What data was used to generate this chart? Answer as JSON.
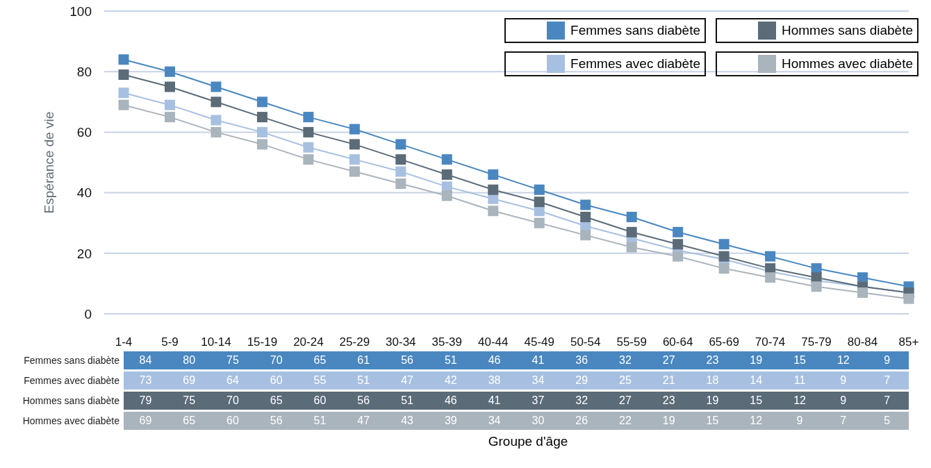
{
  "chart_data": {
    "type": "line",
    "annotations": [
      "Groupe d'âge"
    ],
    "ylabel": "Espérance de vie",
    "categories": [
      "1-4",
      "5-9",
      "10-14",
      "15-19",
      "20-24",
      "25-29",
      "30-34",
      "35-39",
      "40-44",
      "45-49",
      "50-54",
      "55-59",
      "60-64",
      "65-69",
      "70-74",
      "75-79",
      "80-84",
      "85+"
    ],
    "series": [
      {
        "name": "Femmes sans diabète",
        "color": "#4a87c0",
        "values": [
          84,
          80,
          75,
          70,
          65,
          61,
          56,
          51,
          46,
          41,
          36,
          32,
          27,
          23,
          19,
          15,
          12,
          9
        ]
      },
      {
        "name": "Femmes avec diabète",
        "color": "#a7c0e1",
        "values": [
          73,
          69,
          64,
          60,
          55,
          51,
          47,
          42,
          38,
          34,
          29,
          25,
          21,
          18,
          14,
          11,
          9,
          7
        ]
      },
      {
        "name": "Hommes sans diabète",
        "color": "#5b6b78",
        "values": [
          79,
          75,
          70,
          65,
          60,
          56,
          51,
          46,
          41,
          37,
          32,
          27,
          23,
          19,
          15,
          12,
          9,
          7
        ]
      },
      {
        "name": "Hommes avec diabète",
        "color": "#a9b4bc",
        "values": [
          69,
          65,
          60,
          56,
          51,
          47,
          43,
          39,
          34,
          30,
          26,
          22,
          19,
          15,
          12,
          9,
          7,
          5
        ]
      }
    ],
    "ylim": [
      0,
      100
    ],
    "yticks": [
      0,
      20,
      40,
      60,
      80,
      100
    ],
    "grid": "y",
    "legend": "top right",
    "marker": "square",
    "line_style": "solid",
    "data_labels": true
  }
}
